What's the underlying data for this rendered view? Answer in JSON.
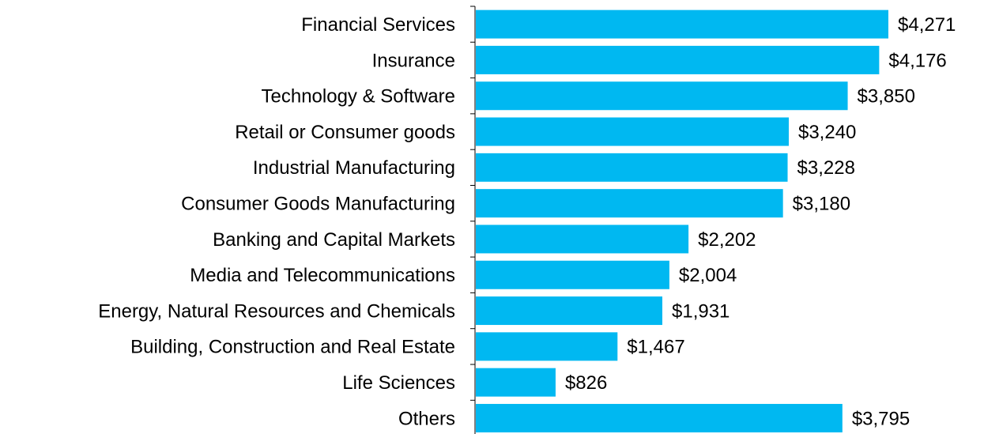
{
  "chart_data": {
    "type": "hbar",
    "categories": [
      "Financial Services",
      "Insurance",
      "Technology & Software",
      "Retail or Consumer goods",
      "Industrial Manufacturing",
      "Consumer Goods Manufacturing",
      "Banking and Capital Markets",
      "Media and Telecommunications",
      "Energy, Natural Resources and Chemicals",
      "Building, Construction and Real Estate",
      "Life Sciences",
      "Others"
    ],
    "values": [
      4271,
      4176,
      3850,
      3240,
      3228,
      3180,
      2202,
      2004,
      1931,
      1467,
      826,
      3795
    ],
    "value_labels": [
      "$4,271",
      "$4,176",
      "$3,850",
      "$3,240",
      "$3,228",
      "$3,180",
      "$2,202",
      "$2,004",
      "$1,931",
      "$1,467",
      "$826",
      "$3,795"
    ],
    "color": "#00b8f1"
  }
}
